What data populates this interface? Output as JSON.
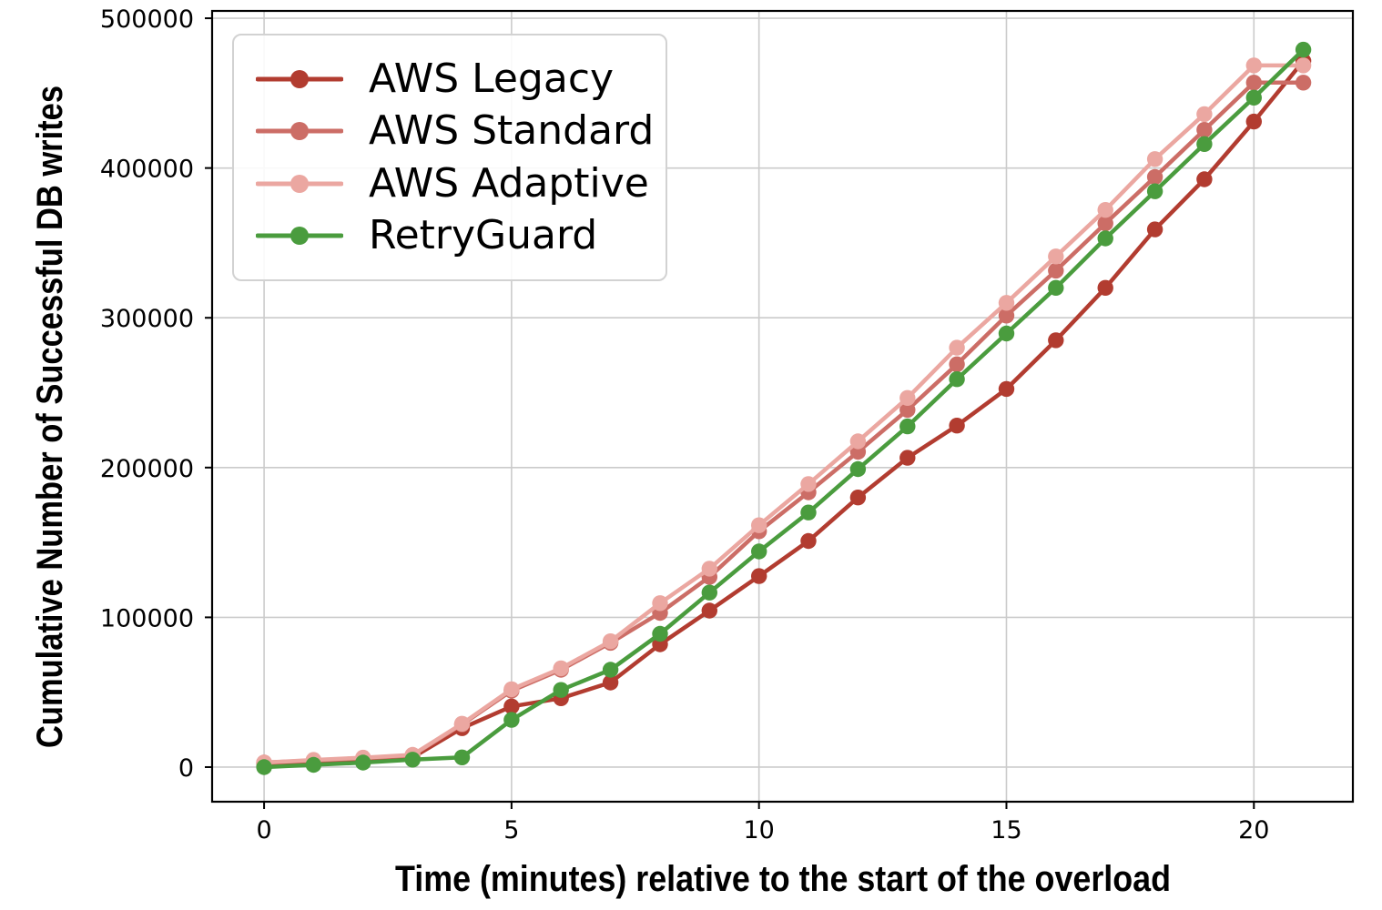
{
  "chart_data": {
    "type": "line",
    "title": "",
    "xlabel": "Time (minutes) relative to the start of the overload",
    "ylabel": "Cumulative Number of Successful DB writes",
    "x": [
      0,
      1,
      2,
      3,
      4,
      5,
      6,
      7,
      8,
      9,
      10,
      11,
      12,
      13,
      14,
      15,
      16,
      17,
      18,
      19,
      20,
      21
    ],
    "series": [
      {
        "name": "AWS Legacy",
        "color": "#b23c30",
        "values": [
          2500,
          3500,
          5000,
          6500,
          26000,
          40500,
          46000,
          56500,
          82000,
          104500,
          127500,
          151000,
          180000,
          206500,
          228000,
          252500,
          285000,
          320000,
          359000,
          392500,
          431000,
          471500
        ]
      },
      {
        "name": "AWS Standard",
        "color": "#cc6d66",
        "values": [
          3000,
          4500,
          6000,
          7800,
          28500,
          51000,
          65000,
          83000,
          103000,
          127000,
          157500,
          183500,
          210500,
          238500,
          269000,
          301500,
          331500,
          363000,
          394000,
          425500,
          457000,
          457000
        ]
      },
      {
        "name": "AWS Adaptive",
        "color": "#eba7a1",
        "values": [
          3000,
          4800,
          6300,
          8200,
          29000,
          52000,
          66000,
          84000,
          109500,
          132500,
          161500,
          189000,
          217500,
          246500,
          280000,
          310000,
          341000,
          372000,
          406000,
          436000,
          468500,
          468500
        ]
      },
      {
        "name": "RetryGuard",
        "color": "#4a9c3e",
        "values": [
          0,
          1500,
          3000,
          5000,
          6500,
          31500,
          51500,
          65000,
          89000,
          116500,
          144000,
          170000,
          199000,
          227500,
          259000,
          289500,
          320000,
          353000,
          384500,
          416000,
          447000,
          479000
        ]
      }
    ],
    "xticks": {
      "values": [
        0,
        5,
        10,
        15,
        20
      ],
      "labels": [
        "0",
        "5",
        "10",
        "15",
        "20"
      ]
    },
    "yticks": {
      "values": [
        0,
        100000,
        200000,
        300000,
        400000,
        500000
      ],
      "labels": [
        "0",
        "100000",
        "200000",
        "300000",
        "400000",
        "500000"
      ]
    },
    "xlim": [
      -1.05,
      22.0
    ],
    "ylim": [
      -23100,
      504900
    ],
    "grid": true,
    "grid_color": "#cbcbcb",
    "legend": {
      "location": "upper left"
    },
    "marker": "circle"
  }
}
